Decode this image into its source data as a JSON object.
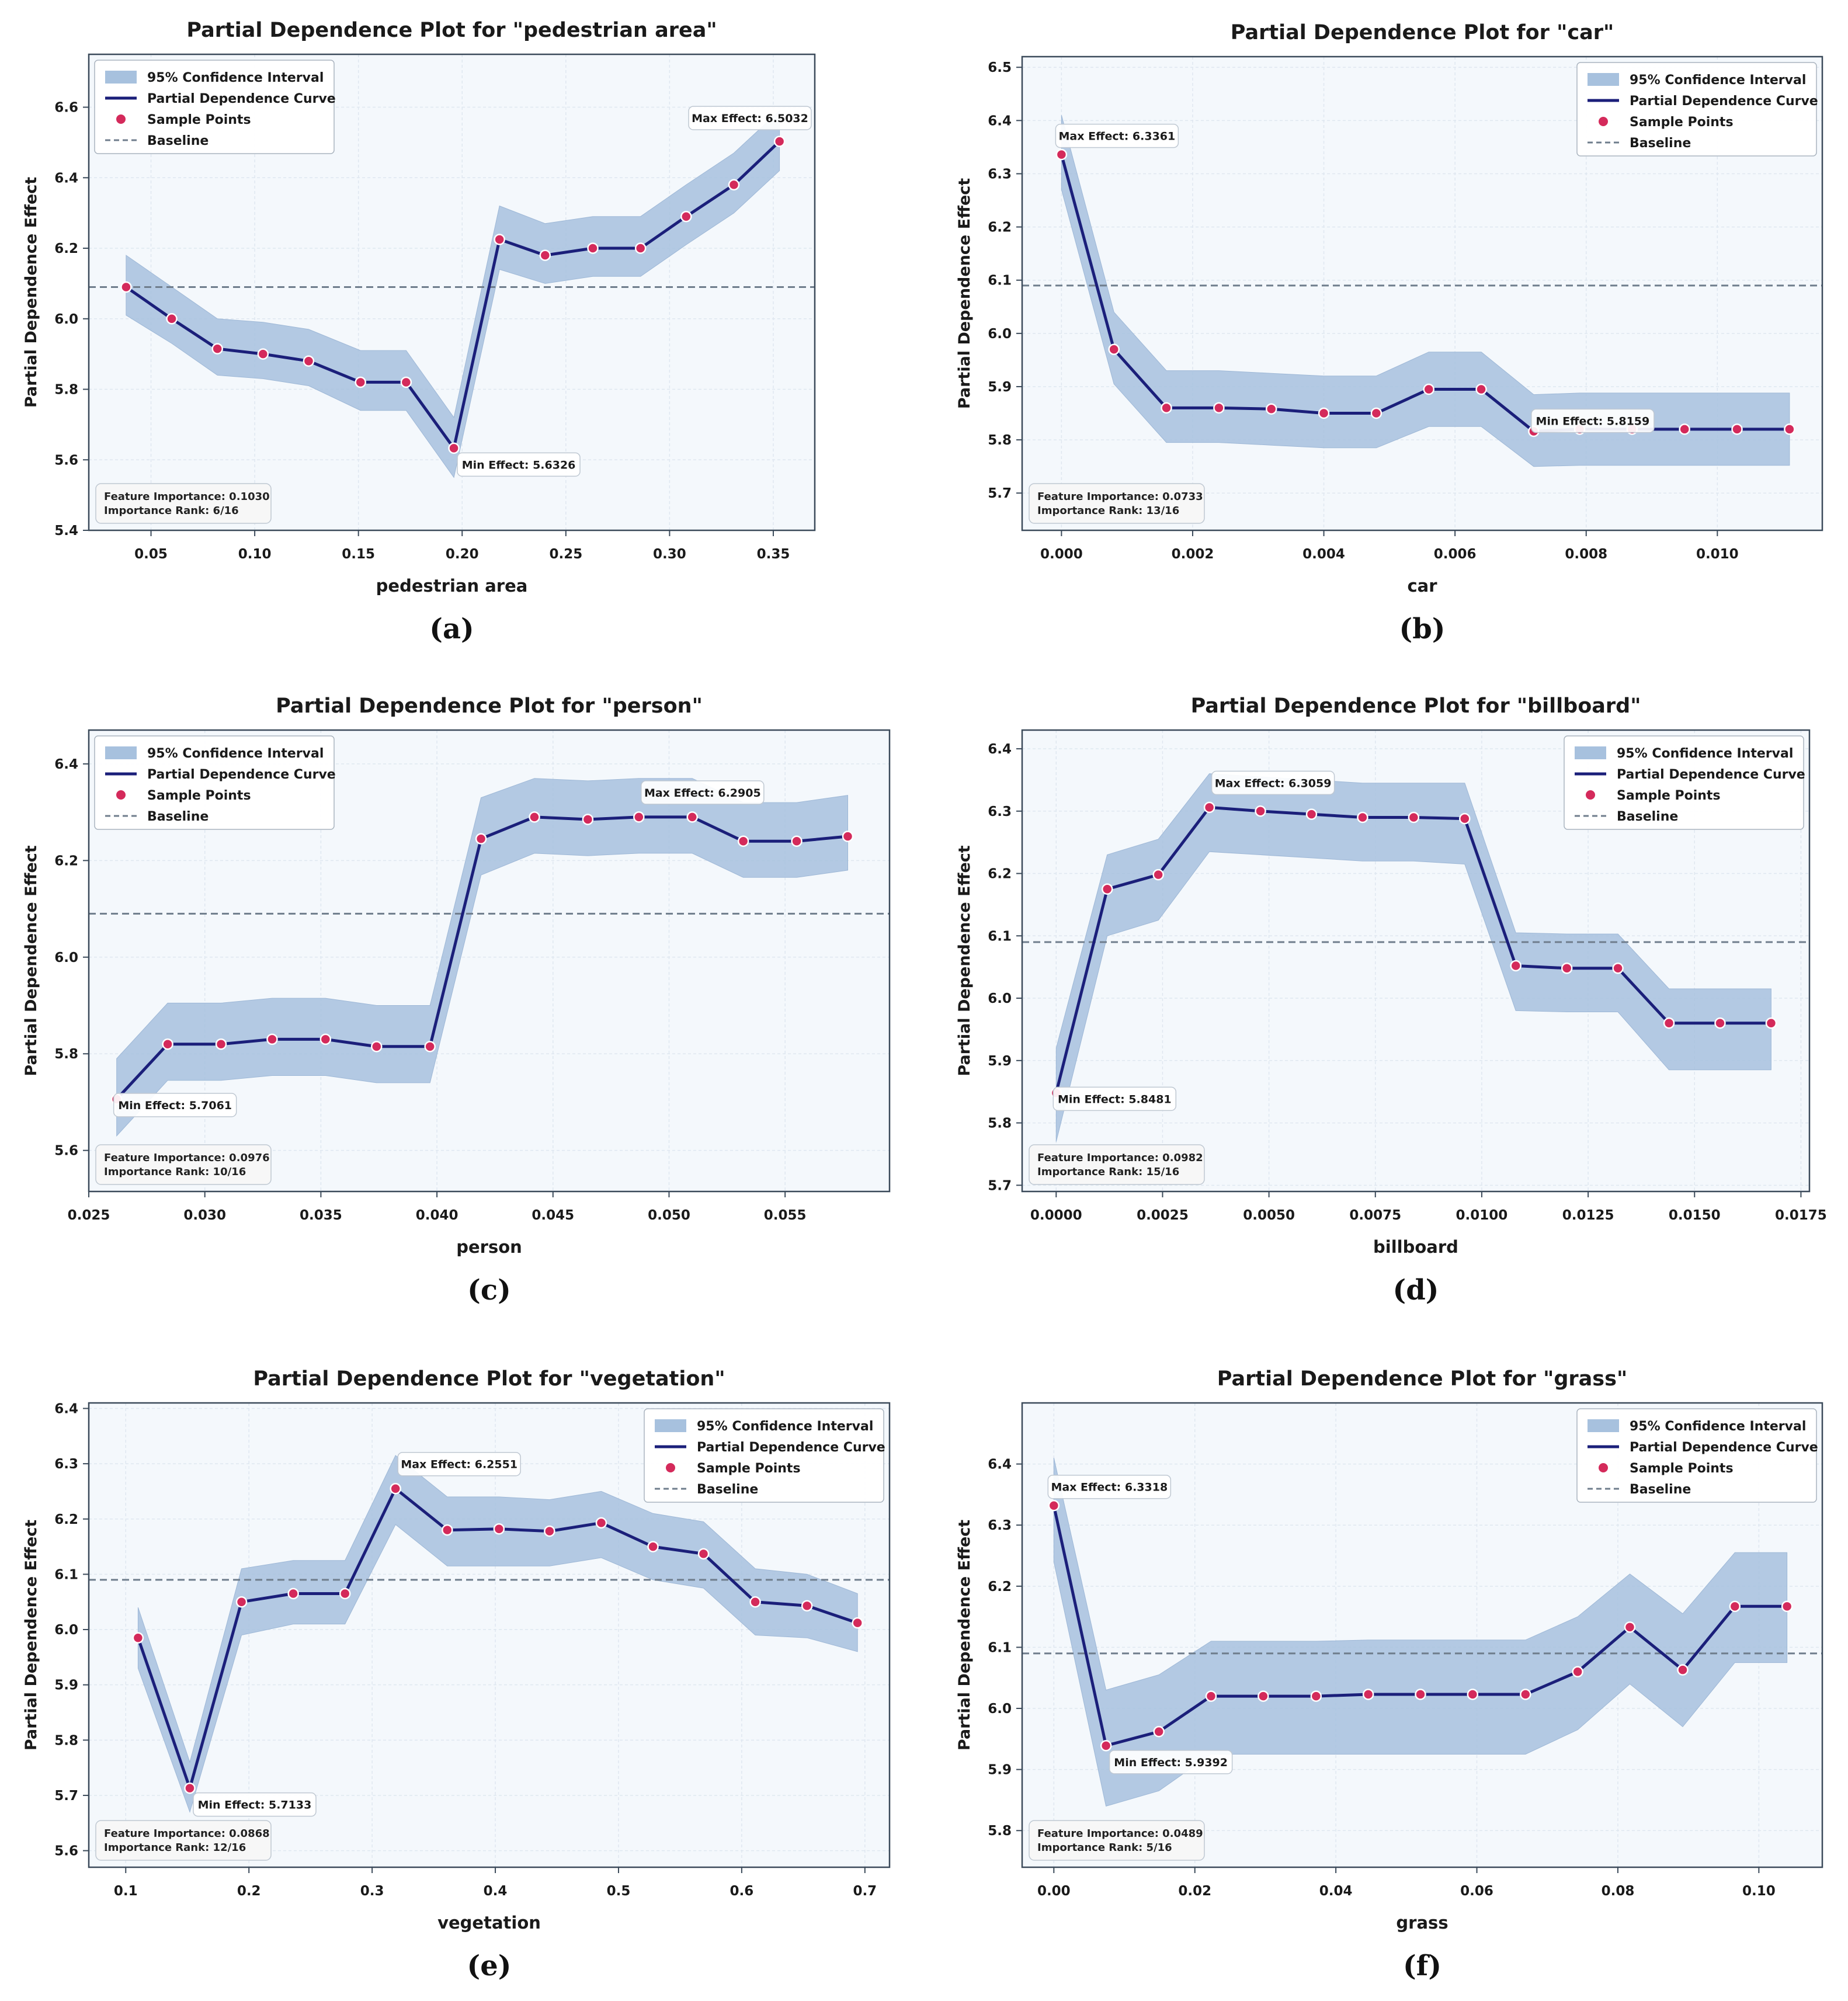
{
  "chart_data": [
    {
      "type": "line",
      "title": "Partial Dependence Plot for \"pedestrian area\"",
      "xlabel": "pedestrian area",
      "ylabel": "Partial Dependence Effect",
      "caption": "(a)",
      "xlim": [
        0.02,
        0.37
      ],
      "ylim": [
        5.4,
        6.75
      ],
      "xticks": [
        0.05,
        0.1,
        0.15,
        0.2,
        0.25,
        0.3,
        0.35
      ],
      "xtick_labels": [
        "0.05",
        "0.10",
        "0.15",
        "0.20",
        "0.25",
        "0.30",
        "0.35"
      ],
      "yticks": [
        5.4,
        5.6,
        5.8,
        6.0,
        6.2,
        6.4,
        6.6
      ],
      "ytick_labels": [
        "5.4",
        "5.6",
        "5.8",
        "6.0",
        "6.2",
        "6.4",
        "6.6"
      ],
      "baseline": 6.09,
      "legend_position": "top-left",
      "x": [
        0.038,
        0.06,
        0.082,
        0.104,
        0.126,
        0.151,
        0.173,
        0.196,
        0.218,
        0.24,
        0.263,
        0.286,
        0.308,
        0.331,
        0.353
      ],
      "y": [
        6.09,
        6.0,
        5.915,
        5.9,
        5.88,
        5.82,
        5.82,
        5.633,
        6.225,
        6.18,
        6.2,
        6.2,
        6.29,
        6.38,
        6.503
      ],
      "ci_lower": [
        6.01,
        5.93,
        5.84,
        5.83,
        5.81,
        5.74,
        5.74,
        5.55,
        6.14,
        6.1,
        6.12,
        6.12,
        6.21,
        6.3,
        6.42
      ],
      "ci_upper": [
        6.18,
        6.09,
        6.0,
        5.99,
        5.97,
        5.91,
        5.91,
        5.72,
        6.32,
        6.27,
        6.29,
        6.29,
        6.38,
        6.47,
        6.59
      ],
      "max_label": "Max Effect: 6.5032",
      "max_index": 14,
      "min_label": "Min Effect: 5.6326",
      "min_index": 7,
      "importance_text": "Feature Importance: 0.1030",
      "rank_text": "Importance Rank: 6/16"
    },
    {
      "type": "line",
      "title": "Partial Dependence Plot for \"car\"",
      "xlabel": "car",
      "ylabel": "Partial Dependence Effect",
      "caption": "(b)",
      "xlim": [
        -0.0006,
        0.0116
      ],
      "ylim": [
        5.63,
        6.52
      ],
      "xticks": [
        0.0,
        0.002,
        0.004,
        0.006,
        0.008,
        0.01
      ],
      "xtick_labels": [
        "0.000",
        "0.002",
        "0.004",
        "0.006",
        "0.008",
        "0.010"
      ],
      "yticks": [
        5.7,
        5.8,
        5.9,
        6.0,
        6.1,
        6.2,
        6.3,
        6.4,
        6.5
      ],
      "ytick_labels": [
        "5.7",
        "5.8",
        "5.9",
        "6.0",
        "6.1",
        "6.2",
        "6.3",
        "6.4",
        "6.5"
      ],
      "baseline": 6.09,
      "legend_position": "top-right",
      "x": [
        0.0,
        0.0008,
        0.0016,
        0.0024,
        0.0032,
        0.004,
        0.0048,
        0.0056,
        0.0064,
        0.0072,
        0.0079,
        0.0087,
        0.0095,
        0.0103,
        0.0111
      ],
      "y": [
        6.336,
        5.97,
        5.86,
        5.86,
        5.858,
        5.85,
        5.85,
        5.895,
        5.895,
        5.816,
        5.82,
        5.82,
        5.82,
        5.82,
        5.82
      ],
      "ci_lower": [
        6.27,
        5.905,
        5.795,
        5.795,
        5.79,
        5.785,
        5.785,
        5.825,
        5.825,
        5.75,
        5.752,
        5.752,
        5.752,
        5.752,
        5.752
      ],
      "ci_upper": [
        6.41,
        6.04,
        5.93,
        5.93,
        5.925,
        5.92,
        5.92,
        5.965,
        5.965,
        5.885,
        5.888,
        5.888,
        5.888,
        5.888,
        5.888
      ],
      "max_label": "Max Effect: 6.3361",
      "max_index": 0,
      "min_label": "Min Effect: 5.8159",
      "min_index": 9,
      "importance_text": "Feature Importance: 0.0733",
      "rank_text": "Importance Rank: 13/16"
    },
    {
      "type": "line",
      "title": "Partial Dependence Plot for \"person\"",
      "xlabel": "person",
      "ylabel": "Partial Dependence Effect",
      "caption": "(c)",
      "xlim": [
        0.025,
        0.0595
      ],
      "ylim": [
        5.515,
        6.47
      ],
      "xticks": [
        0.025,
        0.03,
        0.035,
        0.04,
        0.045,
        0.05,
        0.055
      ],
      "xtick_labels": [
        "0.025",
        "0.030",
        "0.035",
        "0.040",
        "0.045",
        "0.050",
        "0.055"
      ],
      "yticks": [
        5.6,
        5.8,
        6.0,
        6.2,
        6.4
      ],
      "ytick_labels": [
        "5.6",
        "5.8",
        "6.0",
        "6.2",
        "6.4"
      ],
      "baseline": 6.09,
      "legend_position": "top-left",
      "x": [
        0.0262,
        0.0284,
        0.0307,
        0.0329,
        0.0352,
        0.0374,
        0.0397,
        0.0419,
        0.0442,
        0.0465,
        0.0487,
        0.051,
        0.0532,
        0.0555,
        0.0577
      ],
      "y": [
        5.706,
        5.82,
        5.82,
        5.83,
        5.83,
        5.815,
        5.815,
        6.245,
        6.29,
        6.285,
        6.29,
        6.29,
        6.24,
        6.24,
        6.25
      ],
      "ci_lower": [
        5.63,
        5.745,
        5.745,
        5.755,
        5.755,
        5.74,
        5.74,
        6.17,
        6.215,
        6.21,
        6.215,
        6.215,
        6.165,
        6.165,
        6.18
      ],
      "ci_upper": [
        5.79,
        5.905,
        5.905,
        5.915,
        5.915,
        5.9,
        5.9,
        6.33,
        6.37,
        6.365,
        6.37,
        6.37,
        6.32,
        6.32,
        6.335
      ],
      "max_label": "Max Effect: 6.2905",
      "max_index": 10,
      "min_label": "Min Effect: 5.7061",
      "min_index": 0,
      "importance_text": "Feature Importance: 0.0976",
      "rank_text": "Importance Rank: 10/16"
    },
    {
      "type": "line",
      "title": "Partial Dependence Plot for \"billboard\"",
      "xlabel": "billboard",
      "ylabel": "Partial Dependence Effect",
      "caption": "(d)",
      "xlim": [
        -0.0008,
        0.0177
      ],
      "ylim": [
        5.69,
        6.43
      ],
      "xticks": [
        0.0,
        0.0025,
        0.005,
        0.0075,
        0.01,
        0.0125,
        0.015,
        0.0175
      ],
      "xtick_labels": [
        "0.0000",
        "0.0025",
        "0.0050",
        "0.0075",
        "0.0100",
        "0.0125",
        "0.0150",
        "0.0175"
      ],
      "yticks": [
        5.7,
        5.8,
        5.9,
        6.0,
        6.1,
        6.2,
        6.3,
        6.4
      ],
      "ytick_labels": [
        "5.7",
        "5.8",
        "5.9",
        "6.0",
        "6.1",
        "6.2",
        "6.3",
        "6.4"
      ],
      "baseline": 6.09,
      "legend_position": "top-right",
      "x": [
        0.0,
        0.0012,
        0.0024,
        0.0036,
        0.0048,
        0.006,
        0.0072,
        0.0084,
        0.0096,
        0.0108,
        0.012,
        0.0132,
        0.0144,
        0.0156,
        0.0168
      ],
      "y": [
        5.848,
        6.175,
        6.198,
        6.306,
        6.3,
        6.295,
        6.29,
        6.29,
        6.288,
        6.052,
        6.048,
        6.048,
        5.96,
        5.96,
        5.96
      ],
      "ci_lower": [
        5.77,
        6.1,
        6.125,
        6.235,
        6.23,
        6.225,
        6.22,
        6.22,
        6.215,
        5.98,
        5.978,
        5.978,
        5.885,
        5.885,
        5.885
      ],
      "ci_upper": [
        5.92,
        6.23,
        6.255,
        6.36,
        6.355,
        6.35,
        6.345,
        6.345,
        6.345,
        6.105,
        6.103,
        6.103,
        6.015,
        6.015,
        6.015
      ],
      "max_label": "Max Effect: 6.3059",
      "max_index": 3,
      "min_label": "Min Effect: 5.8481",
      "min_index": 0,
      "importance_text": "Feature Importance: 0.0982",
      "rank_text": "Importance Rank: 15/16"
    },
    {
      "type": "line",
      "title": "Partial Dependence Plot for \"vegetation\"",
      "xlabel": "vegetation",
      "ylabel": "Partial Dependence Effect",
      "caption": "(e)",
      "xlim": [
        0.07,
        0.72
      ],
      "ylim": [
        5.57,
        6.41
      ],
      "xticks": [
        0.1,
        0.2,
        0.3,
        0.4,
        0.5,
        0.6,
        0.7
      ],
      "xtick_labels": [
        "0.1",
        "0.2",
        "0.3",
        "0.4",
        "0.5",
        "0.6",
        "0.7"
      ],
      "yticks": [
        5.6,
        5.7,
        5.8,
        5.9,
        6.0,
        6.1,
        6.2,
        6.3,
        6.4
      ],
      "ytick_labels": [
        "5.6",
        "5.7",
        "5.8",
        "5.9",
        "6.0",
        "6.1",
        "6.2",
        "6.3",
        "6.4"
      ],
      "baseline": 6.09,
      "legend_position": "top-right",
      "x": [
        0.11,
        0.152,
        0.194,
        0.236,
        0.278,
        0.319,
        0.361,
        0.403,
        0.444,
        0.486,
        0.528,
        0.569,
        0.611,
        0.653,
        0.694
      ],
      "y": [
        5.985,
        5.713,
        6.05,
        6.065,
        6.065,
        6.255,
        6.18,
        6.182,
        6.178,
        6.193,
        6.15,
        6.137,
        6.05,
        6.043,
        6.012
      ],
      "ci_lower": [
        5.93,
        5.67,
        5.99,
        6.01,
        6.01,
        6.19,
        6.115,
        6.115,
        6.115,
        6.13,
        6.09,
        6.075,
        5.99,
        5.985,
        5.96
      ],
      "ci_upper": [
        6.04,
        5.76,
        6.11,
        6.125,
        6.125,
        6.315,
        6.24,
        6.24,
        6.235,
        6.25,
        6.21,
        6.195,
        6.11,
        6.1,
        6.065
      ],
      "max_label": "Max Effect: 6.2551",
      "max_index": 5,
      "min_label": "Min Effect: 5.7133",
      "min_index": 1,
      "importance_text": "Feature Importance: 0.0868",
      "rank_text": "Importance Rank: 12/16"
    },
    {
      "type": "line",
      "title": "Partial Dependence Plot for \"grass\"",
      "xlabel": "grass",
      "ylabel": "Partial Dependence Effect",
      "caption": "(f)",
      "xlim": [
        -0.0045,
        0.109
      ],
      "ylim": [
        5.74,
        6.5
      ],
      "xticks": [
        0.0,
        0.02,
        0.04,
        0.06,
        0.08,
        0.1
      ],
      "xtick_labels": [
        "0.00",
        "0.02",
        "0.04",
        "0.06",
        "0.08",
        "0.10"
      ],
      "yticks": [
        5.8,
        5.9,
        6.0,
        6.1,
        6.2,
        6.3,
        6.4
      ],
      "ytick_labels": [
        "5.8",
        "5.9",
        "6.0",
        "6.1",
        "6.2",
        "6.3",
        "6.4"
      ],
      "baseline": 6.09,
      "legend_position": "top-right",
      "x": [
        0.0,
        0.0074,
        0.0149,
        0.0223,
        0.0297,
        0.0372,
        0.0446,
        0.052,
        0.0594,
        0.0669,
        0.0743,
        0.0817,
        0.0892,
        0.0966,
        0.104
      ],
      "y": [
        6.332,
        5.939,
        5.962,
        6.02,
        6.02,
        6.02,
        6.023,
        6.023,
        6.023,
        6.023,
        6.06,
        6.133,
        6.063,
        6.167,
        6.167
      ],
      "ci_lower": [
        6.24,
        5.84,
        5.865,
        5.925,
        5.925,
        5.925,
        5.925,
        5.925,
        5.925,
        5.925,
        5.965,
        6.04,
        5.97,
        6.075,
        6.075
      ],
      "ci_upper": [
        6.41,
        6.03,
        6.055,
        6.11,
        6.11,
        6.11,
        6.112,
        6.112,
        6.112,
        6.112,
        6.15,
        6.22,
        6.155,
        6.255,
        6.255
      ],
      "max_label": "Max Effect: 6.3318",
      "max_index": 0,
      "min_label": "Min Effect: 5.9392",
      "min_index": 1,
      "importance_text": "Feature Importance: 0.0489",
      "rank_text": "Importance Rank: 5/16"
    }
  ],
  "legend": {
    "ci": "95% Confidence Interval",
    "curve": "Partial Dependence Curve",
    "points": "Sample Points",
    "baseline": "Baseline"
  },
  "colors": {
    "ci_fill": "#a7c1de",
    "curve": "#1b1f7a",
    "points": "#d42a5b",
    "baseline": "#6f7d8c",
    "plot_bg": "#f4f8fc",
    "axis": "#3b4a5a"
  }
}
